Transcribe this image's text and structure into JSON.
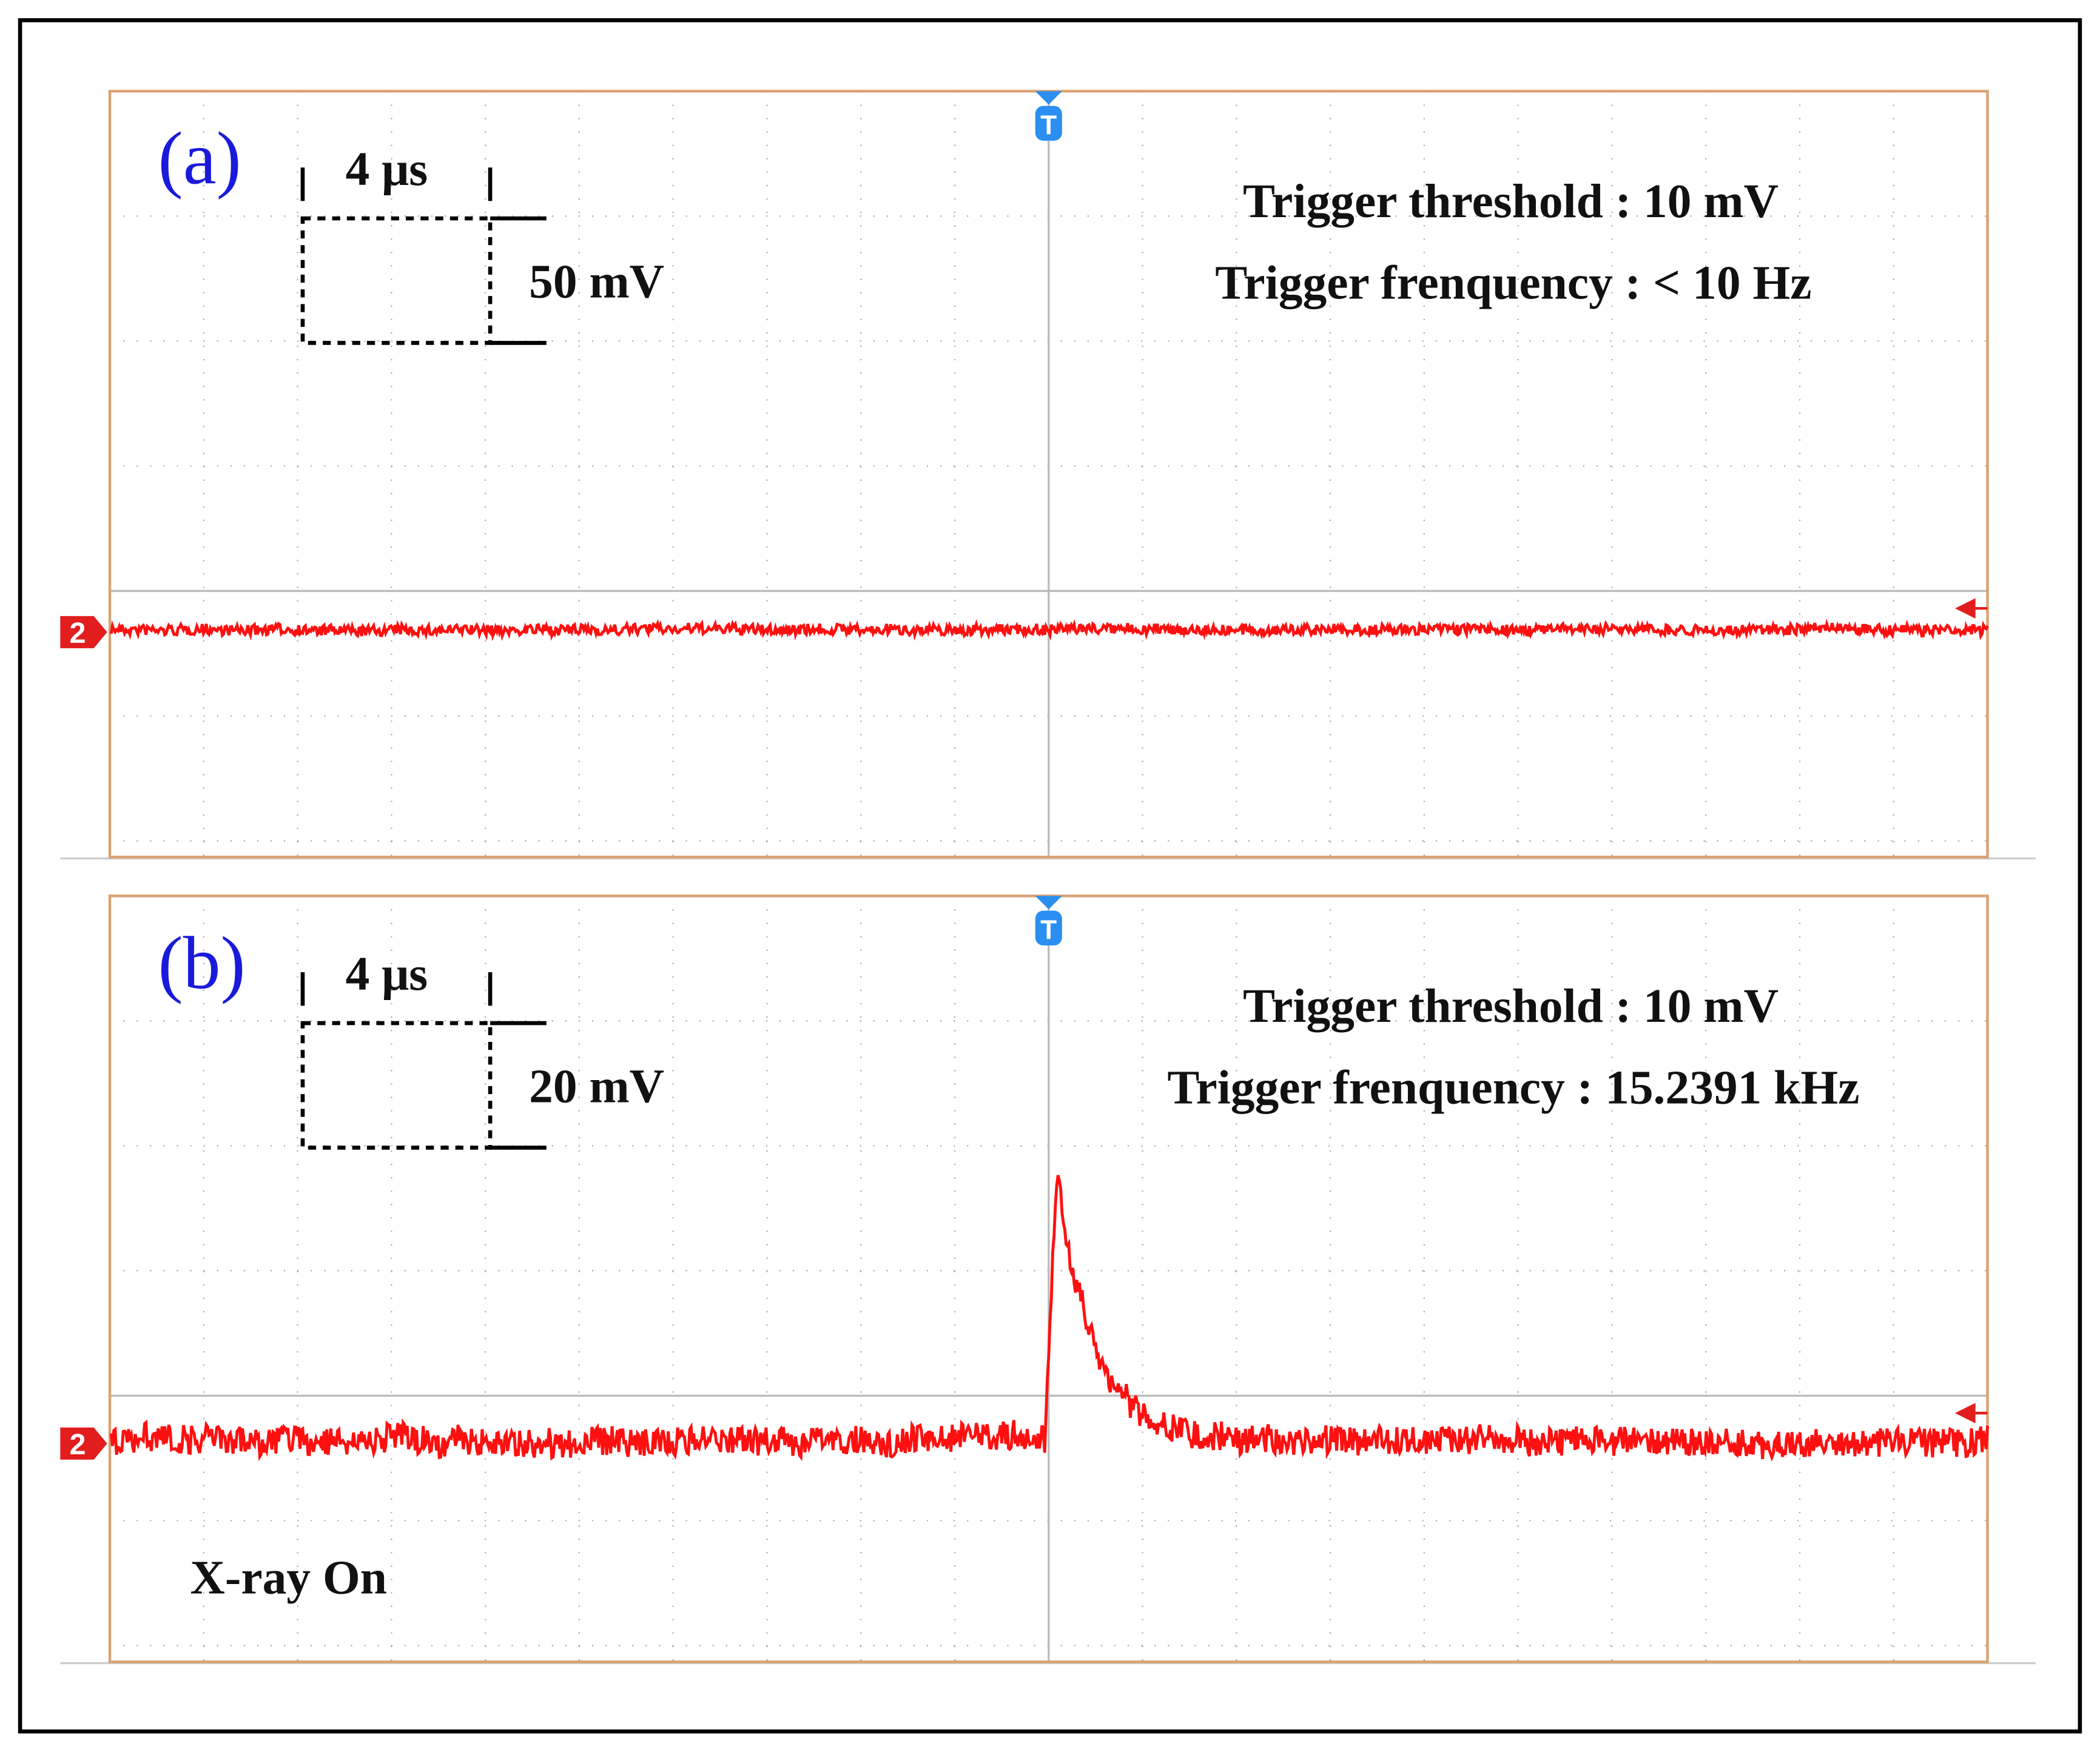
{
  "panels": [
    {
      "label": "(a)",
      "time_scale": "4 μs",
      "volt_scale": "50 mV",
      "trigger_threshold": "Trigger threshold : 10 mV",
      "trigger_frequency": "Trigger frenquency :  < 10 Hz",
      "channel": "2",
      "trigger_marker": "T"
    },
    {
      "label": "(b)",
      "time_scale": "4 μs",
      "volt_scale": "20 mV",
      "trigger_threshold": "Trigger threshold : 10 mV",
      "trigger_frequency": "Trigger frenquency : 15.2391 kHz",
      "channel": "2",
      "trigger_marker": "T",
      "note": "X-ray On"
    }
  ]
}
